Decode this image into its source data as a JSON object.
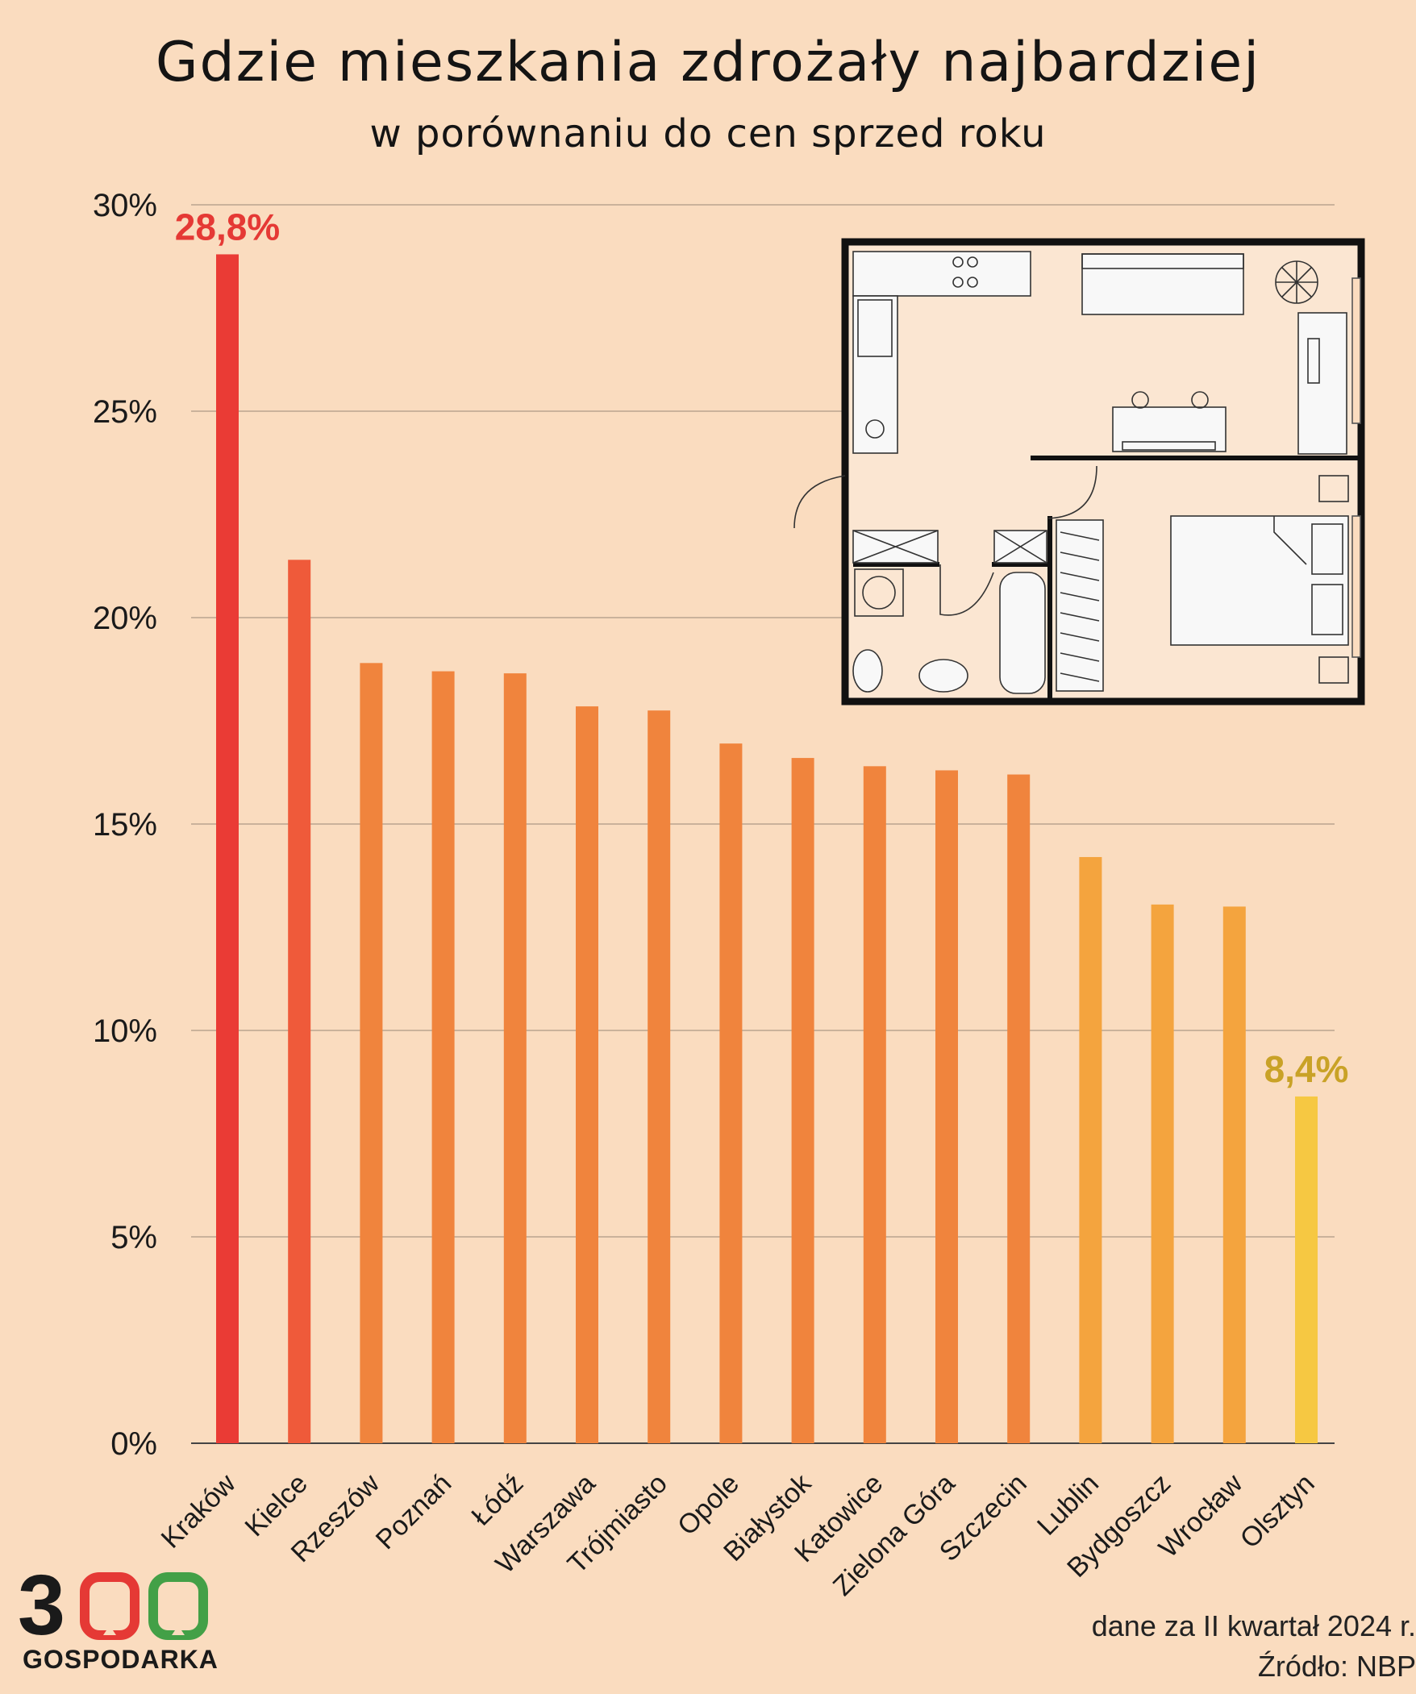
{
  "title": "Gdzie mieszkania zdrożały najbardziej",
  "subtitle": "w porównaniu do cen sprzed roku",
  "footer": {
    "note": "dane za II kwartał 2024 r.",
    "source": "Źródło: NBP"
  },
  "logo": {
    "text": "GOSPODARKA",
    "digits": [
      "3",
      "0",
      "0"
    ],
    "colors": [
      "#1a1a1a",
      "#e53935",
      "#43a047"
    ]
  },
  "chart_data": {
    "type": "bar",
    "title": "Gdzie mieszkania zdrożały najbardziej",
    "subtitle": "w porównaniu do cen sprzed roku",
    "categories": [
      "Kraków",
      "Kielce",
      "Rzeszów",
      "Poznań",
      "Łódź",
      "Warszawa",
      "Trójmiasto",
      "Opole",
      "Białystok",
      "Katowice",
      "Zielona Góra",
      "Szczecin",
      "Lublin",
      "Bydgoszcz",
      "Wrocław",
      "Olsztyn"
    ],
    "values": [
      28.8,
      21.4,
      18.9,
      18.7,
      18.65,
      17.85,
      17.75,
      16.95,
      16.6,
      16.4,
      16.3,
      16.2,
      14.2,
      13.05,
      13.0,
      8.4
    ],
    "colors": [
      "#ea3b35",
      "#ef5a3a",
      "#f0843d",
      "#f0843d",
      "#f0843d",
      "#f0843d",
      "#f0843d",
      "#f0843d",
      "#f0843d",
      "#f0843d",
      "#f0843d",
      "#f0843d",
      "#f4a43e",
      "#f4a43e",
      "#f4a43e",
      "#f6c842"
    ],
    "ylim": [
      0,
      30
    ],
    "yticks": [
      0,
      5,
      10,
      15,
      20,
      25,
      30
    ],
    "ytick_labels": [
      "0%",
      "5%",
      "10%",
      "15%",
      "20%",
      "25%",
      "30%"
    ],
    "grid": true,
    "annotations": [
      {
        "category": "Kraków",
        "text": "28,8%",
        "color": "#e53935"
      },
      {
        "category": "Olsztyn",
        "text": "8,4%",
        "color": "#c9a227"
      }
    ]
  }
}
